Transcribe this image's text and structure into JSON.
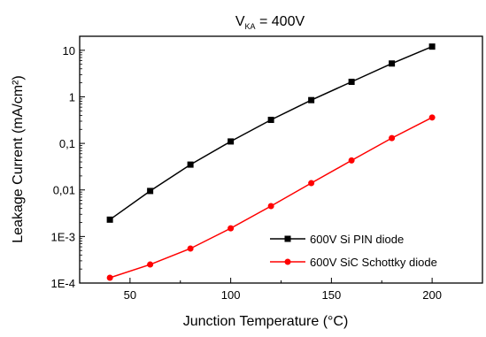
{
  "chart_data": {
    "type": "line",
    "title": {
      "main": "V",
      "subscript": "KA",
      "suffix": " = 400V"
    },
    "xlabel": "Junction Temperature (°C)",
    "ylabel": "Leakage Current (mA/cm²)",
    "xlim": [
      25,
      225
    ],
    "ylim": [
      0.0001,
      20
    ],
    "yscale": "log",
    "xticks": [
      50,
      100,
      150,
      200
    ],
    "xtick_labels": [
      "50",
      "100",
      "150",
      "200"
    ],
    "yticks": [
      0.0001,
      0.001,
      0.01,
      0.1,
      1,
      10
    ],
    "ytick_labels": [
      "1E-4",
      "1E-3",
      "0,01",
      "0,1",
      "1",
      "10"
    ],
    "grid": false,
    "legend_position": "bottom-right",
    "series": [
      {
        "name": "600V Si PIN diode",
        "color": "#000000",
        "marker": "square",
        "x": [
          40,
          60,
          80,
          100,
          120,
          140,
          160,
          180,
          200
        ],
        "y": [
          0.0023,
          0.0095,
          0.035,
          0.11,
          0.32,
          0.85,
          2.1,
          5.2,
          12
        ]
      },
      {
        "name": "600V SiC Schottky diode",
        "color": "#ff0000",
        "marker": "circle",
        "x": [
          40,
          60,
          80,
          100,
          120,
          140,
          160,
          180,
          200
        ],
        "y": [
          0.00013,
          0.00025,
          0.00055,
          0.0015,
          0.0045,
          0.014,
          0.043,
          0.13,
          0.36
        ]
      }
    ]
  }
}
